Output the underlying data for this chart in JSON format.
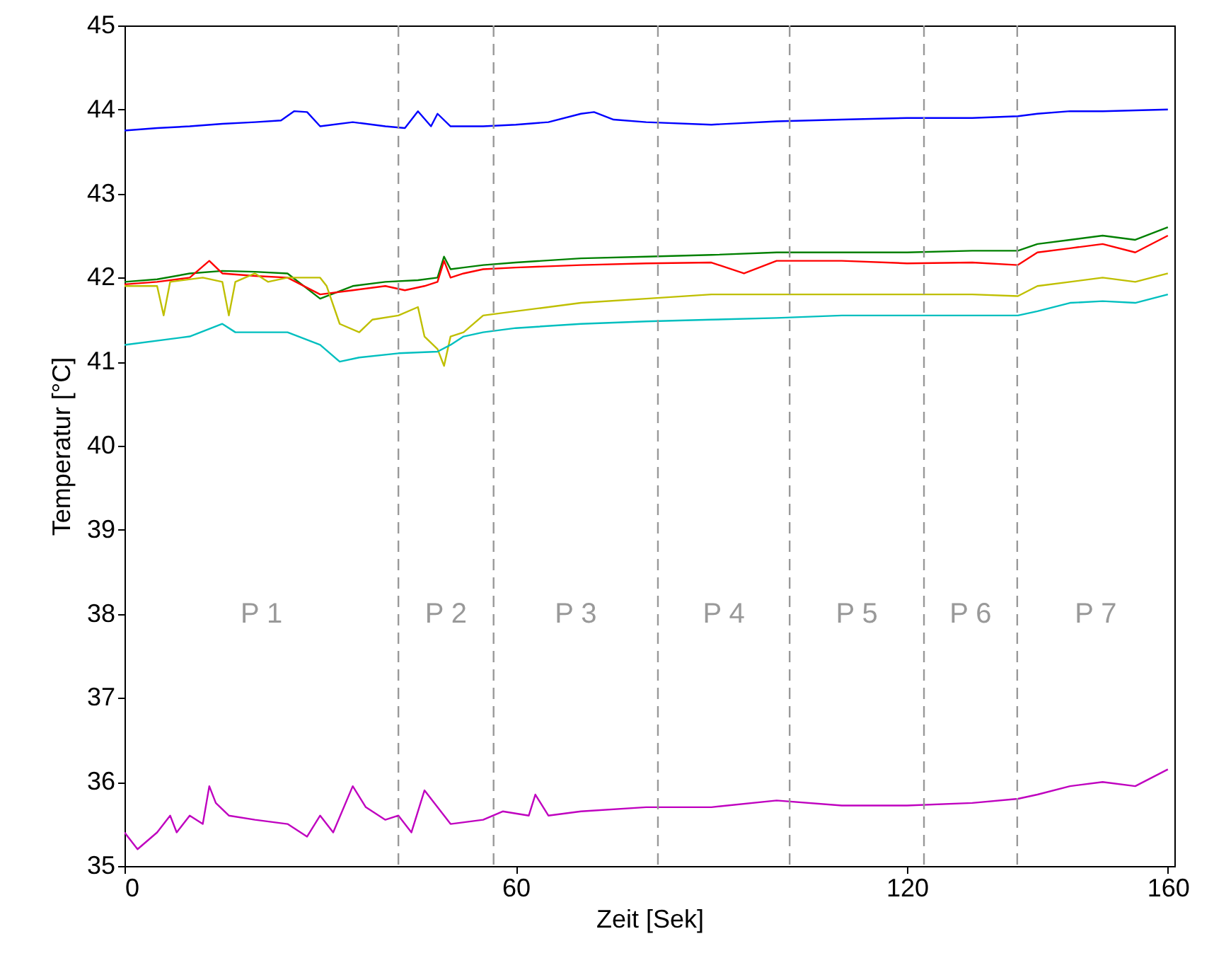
{
  "chart_data": {
    "type": "line",
    "xlabel": "Zeit [Sek]",
    "ylabel": "Temperatur [°C]",
    "xlim": [
      0,
      161
    ],
    "xticks": [
      0,
      60,
      120,
      160
    ],
    "ylim": [
      35,
      45
    ],
    "yticks": [
      35,
      36,
      37,
      38,
      39,
      40,
      41,
      42,
      43,
      44,
      45
    ],
    "line_style": "solid",
    "marker": "none",
    "series": [
      {
        "color": "#0000ff",
        "x": [
          0,
          5,
          10,
          15,
          20,
          24,
          26,
          28,
          30,
          35,
          40,
          43,
          45,
          47,
          48,
          50,
          55,
          60,
          65,
          70,
          72,
          75,
          80,
          90,
          100,
          110,
          120,
          130,
          137,
          140,
          145,
          150,
          155,
          160
        ],
        "values": [
          43.75,
          43.78,
          43.8,
          43.83,
          43.85,
          43.87,
          43.98,
          43.97,
          43.8,
          43.85,
          43.8,
          43.78,
          43.98,
          43.8,
          43.95,
          43.8,
          43.8,
          43.82,
          43.85,
          43.95,
          43.97,
          43.88,
          43.85,
          43.82,
          43.86,
          43.88,
          43.9,
          43.9,
          43.92,
          43.95,
          43.98,
          43.98,
          43.99,
          44.0
        ]
      },
      {
        "color": "#008000",
        "x": [
          0,
          5,
          10,
          15,
          20,
          25,
          30,
          35,
          40,
          45,
          48,
          49,
          50,
          52,
          55,
          60,
          70,
          80,
          90,
          100,
          110,
          120,
          130,
          137,
          140,
          145,
          150,
          155,
          160
        ],
        "values": [
          41.95,
          41.98,
          42.05,
          42.08,
          42.07,
          42.05,
          41.75,
          41.9,
          41.95,
          41.97,
          42.0,
          42.25,
          42.1,
          42.12,
          42.15,
          42.18,
          42.23,
          42.25,
          42.27,
          42.3,
          42.3,
          42.3,
          42.32,
          42.32,
          42.4,
          42.45,
          42.5,
          42.45,
          42.6
        ]
      },
      {
        "color": "#ff0000",
        "x": [
          0,
          5,
          10,
          13,
          15,
          20,
          25,
          30,
          35,
          40,
          43,
          46,
          48,
          49,
          50,
          52,
          55,
          60,
          70,
          80,
          90,
          95,
          100,
          110,
          120,
          130,
          137,
          140,
          145,
          150,
          155,
          160
        ],
        "values": [
          41.92,
          41.95,
          42.0,
          42.2,
          42.05,
          42.02,
          42.0,
          41.8,
          41.85,
          41.9,
          41.85,
          41.9,
          41.95,
          42.2,
          42.0,
          42.05,
          42.1,
          42.12,
          42.15,
          42.17,
          42.18,
          42.05,
          42.2,
          42.2,
          42.17,
          42.18,
          42.15,
          42.3,
          42.35,
          42.4,
          42.3,
          42.5
        ]
      },
      {
        "color": "#bfbf00",
        "x": [
          0,
          5,
          6,
          7,
          12,
          15,
          16,
          17,
          20,
          22,
          25,
          30,
          31,
          33,
          36,
          38,
          42,
          45,
          46,
          48,
          49,
          50,
          52,
          55,
          60,
          70,
          80,
          90,
          100,
          110,
          120,
          130,
          137,
          140,
          145,
          150,
          155,
          160
        ],
        "values": [
          41.9,
          41.9,
          41.55,
          41.95,
          42.0,
          41.95,
          41.55,
          41.95,
          42.05,
          41.95,
          42.0,
          42.0,
          41.9,
          41.45,
          41.35,
          41.5,
          41.55,
          41.65,
          41.3,
          41.15,
          40.95,
          41.3,
          41.35,
          41.55,
          41.6,
          41.7,
          41.75,
          41.8,
          41.8,
          41.8,
          41.8,
          41.8,
          41.78,
          41.9,
          41.95,
          42.0,
          41.95,
          42.05
        ]
      },
      {
        "color": "#00bfbf",
        "x": [
          0,
          10,
          15,
          17,
          25,
          30,
          33,
          36,
          42,
          48,
          50,
          52,
          55,
          60,
          70,
          80,
          90,
          100,
          110,
          120,
          130,
          137,
          140,
          145,
          150,
          155,
          160
        ],
        "values": [
          41.2,
          41.3,
          41.45,
          41.35,
          41.35,
          41.2,
          41.0,
          41.05,
          41.1,
          41.12,
          41.2,
          41.3,
          41.35,
          41.4,
          41.45,
          41.48,
          41.5,
          41.52,
          41.55,
          41.55,
          41.55,
          41.55,
          41.6,
          41.7,
          41.72,
          41.7,
          41.8
        ]
      },
      {
        "color": "#bf00bf",
        "x": [
          0,
          2,
          5,
          7,
          8,
          10,
          12,
          13,
          14,
          16,
          20,
          25,
          28,
          30,
          32,
          35,
          37,
          40,
          42,
          44,
          46,
          48,
          50,
          55,
          58,
          62,
          63,
          65,
          70,
          80,
          90,
          100,
          110,
          120,
          130,
          137,
          140,
          145,
          150,
          155,
          160
        ],
        "values": [
          35.4,
          35.2,
          35.4,
          35.6,
          35.4,
          35.6,
          35.5,
          35.95,
          35.75,
          35.6,
          35.55,
          35.5,
          35.35,
          35.6,
          35.4,
          35.95,
          35.7,
          35.55,
          35.6,
          35.4,
          35.9,
          35.7,
          35.5,
          35.55,
          35.65,
          35.6,
          35.85,
          35.6,
          35.65,
          35.7,
          35.7,
          35.78,
          35.72,
          35.72,
          35.75,
          35.8,
          35.85,
          35.95,
          36.0,
          35.95,
          36.15
        ]
      }
    ],
    "ref_lines": [
      {
        "axis": "x",
        "value": 42,
        "color": "#999999",
        "line_style": "dashed"
      },
      {
        "axis": "x",
        "value": 56.6,
        "color": "#999999",
        "line_style": "dashed"
      },
      {
        "axis": "x",
        "value": 81.8,
        "color": "#999999",
        "line_style": "dashed"
      },
      {
        "axis": "x",
        "value": 102,
        "color": "#999999",
        "line_style": "dashed"
      },
      {
        "axis": "x",
        "value": 122.6,
        "color": "#999999",
        "line_style": "dashed"
      },
      {
        "axis": "x",
        "value": 136.9,
        "color": "#999999",
        "line_style": "dashed"
      }
    ],
    "annotations": [
      "P 1",
      "P 2",
      "P 3",
      "P 4",
      "P 5",
      "P 6",
      "P 7"
    ]
  }
}
